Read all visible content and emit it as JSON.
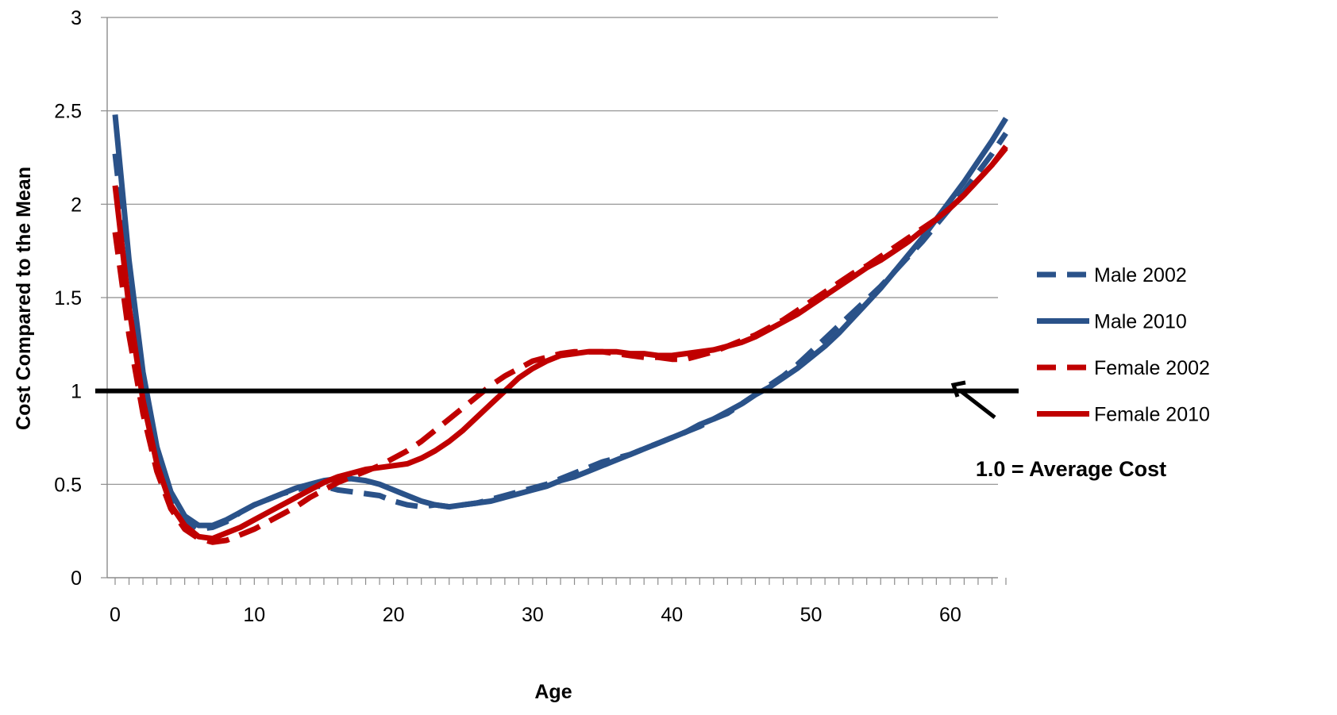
{
  "chart_data": {
    "type": "line",
    "title": "",
    "xlabel": "Age",
    "ylabel": "Cost Compared to the Mean",
    "xlim": [
      0,
      64
    ],
    "ylim": [
      0,
      3
    ],
    "xticks": [
      0,
      10,
      20,
      30,
      40,
      50,
      60
    ],
    "xtick_labels": [
      "0",
      "10",
      "20",
      "30",
      "40",
      "50",
      "60"
    ],
    "yticks": [
      0,
      0.5,
      1,
      1.5,
      2,
      2.5,
      3
    ],
    "ytick_labels": [
      "0",
      "0.5",
      "1",
      "1.5",
      "2",
      "2.5",
      "3"
    ],
    "grid": "horizontal",
    "legend_position": "right",
    "reference_line": {
      "y": 1.0,
      "color": "#000000"
    },
    "annotation": {
      "text": "1.0 = Average Cost",
      "points_to": [
        60,
        1.0
      ]
    },
    "series": [
      {
        "name": "Male 2002",
        "style": "dashed",
        "color": "#2a5289",
        "x": [
          0,
          1,
          2,
          3,
          4,
          5,
          6,
          7,
          8,
          9,
          10,
          11,
          12,
          13,
          14,
          15,
          16,
          17,
          18,
          19,
          20,
          21,
          22,
          23,
          24,
          25,
          26,
          27,
          28,
          29,
          30,
          31,
          32,
          33,
          34,
          35,
          36,
          37,
          38,
          39,
          40,
          41,
          42,
          43,
          44,
          45,
          46,
          47,
          48,
          49,
          50,
          51,
          52,
          53,
          54,
          55,
          56,
          57,
          58,
          59,
          60,
          61,
          62,
          63,
          64
        ],
        "y": [
          2.27,
          1.6,
          1.05,
          0.68,
          0.44,
          0.31,
          0.26,
          0.27,
          0.3,
          0.35,
          0.39,
          0.42,
          0.45,
          0.47,
          0.49,
          0.49,
          0.47,
          0.46,
          0.45,
          0.44,
          0.41,
          0.39,
          0.38,
          0.39,
          0.38,
          0.39,
          0.4,
          0.42,
          0.44,
          0.46,
          0.48,
          0.5,
          0.53,
          0.56,
          0.59,
          0.62,
          0.64,
          0.66,
          0.69,
          0.72,
          0.75,
          0.78,
          0.81,
          0.85,
          0.88,
          0.93,
          0.98,
          1.03,
          1.08,
          1.14,
          1.21,
          1.28,
          1.35,
          1.42,
          1.49,
          1.56,
          1.64,
          1.72,
          1.8,
          1.89,
          1.98,
          2.07,
          2.17,
          2.27,
          2.38
        ]
      },
      {
        "name": "Male 2010",
        "style": "solid",
        "color": "#2a5289",
        "x": [
          0,
          1,
          2,
          3,
          4,
          5,
          6,
          7,
          8,
          9,
          10,
          11,
          12,
          13,
          14,
          15,
          16,
          17,
          18,
          19,
          20,
          21,
          22,
          23,
          24,
          25,
          26,
          27,
          28,
          29,
          30,
          31,
          32,
          33,
          34,
          35,
          36,
          37,
          38,
          39,
          40,
          41,
          42,
          43,
          44,
          45,
          46,
          47,
          48,
          49,
          50,
          51,
          52,
          53,
          54,
          55,
          56,
          57,
          58,
          59,
          60,
          61,
          62,
          63,
          64
        ],
        "y": [
          2.48,
          1.7,
          1.1,
          0.7,
          0.46,
          0.33,
          0.28,
          0.28,
          0.31,
          0.35,
          0.39,
          0.42,
          0.45,
          0.48,
          0.5,
          0.52,
          0.53,
          0.53,
          0.52,
          0.5,
          0.47,
          0.44,
          0.41,
          0.39,
          0.38,
          0.39,
          0.4,
          0.41,
          0.43,
          0.45,
          0.47,
          0.49,
          0.52,
          0.54,
          0.57,
          0.6,
          0.63,
          0.66,
          0.69,
          0.72,
          0.75,
          0.78,
          0.82,
          0.85,
          0.89,
          0.93,
          0.98,
          1.02,
          1.07,
          1.12,
          1.18,
          1.24,
          1.31,
          1.39,
          1.47,
          1.55,
          1.64,
          1.73,
          1.82,
          1.92,
          2.02,
          2.12,
          2.23,
          2.34,
          2.46
        ]
      },
      {
        "name": "Female 2002",
        "style": "dashed",
        "color": "#c00000",
        "x": [
          0,
          1,
          2,
          3,
          4,
          5,
          6,
          7,
          8,
          9,
          10,
          11,
          12,
          13,
          14,
          15,
          16,
          17,
          18,
          19,
          20,
          21,
          22,
          23,
          24,
          25,
          26,
          27,
          28,
          29,
          30,
          31,
          32,
          33,
          34,
          35,
          36,
          37,
          38,
          39,
          40,
          41,
          42,
          43,
          44,
          45,
          46,
          47,
          48,
          49,
          50,
          51,
          52,
          53,
          54,
          55,
          56,
          57,
          58,
          59,
          60,
          61,
          62,
          63,
          64
        ],
        "y": [
          1.85,
          1.3,
          0.88,
          0.57,
          0.37,
          0.26,
          0.21,
          0.19,
          0.2,
          0.23,
          0.26,
          0.3,
          0.34,
          0.38,
          0.43,
          0.47,
          0.51,
          0.54,
          0.57,
          0.6,
          0.64,
          0.68,
          0.73,
          0.79,
          0.85,
          0.91,
          0.97,
          1.03,
          1.08,
          1.12,
          1.16,
          1.18,
          1.2,
          1.21,
          1.21,
          1.21,
          1.2,
          1.19,
          1.18,
          1.18,
          1.17,
          1.17,
          1.19,
          1.21,
          1.24,
          1.27,
          1.3,
          1.34,
          1.38,
          1.43,
          1.48,
          1.53,
          1.58,
          1.63,
          1.67,
          1.72,
          1.77,
          1.82,
          1.87,
          1.92,
          1.98,
          2.05,
          2.13,
          2.21,
          2.3
        ]
      },
      {
        "name": "Female 2010",
        "style": "solid",
        "color": "#c00000",
        "x": [
          0,
          1,
          2,
          3,
          4,
          5,
          6,
          7,
          8,
          9,
          10,
          11,
          12,
          13,
          14,
          15,
          16,
          17,
          18,
          19,
          20,
          21,
          22,
          23,
          24,
          25,
          26,
          27,
          28,
          29,
          30,
          31,
          32,
          33,
          34,
          35,
          36,
          37,
          38,
          39,
          40,
          41,
          42,
          43,
          44,
          45,
          46,
          47,
          48,
          49,
          50,
          51,
          52,
          53,
          54,
          55,
          56,
          57,
          58,
          59,
          60,
          61,
          62,
          63,
          64
        ],
        "y": [
          2.1,
          1.45,
          0.95,
          0.61,
          0.39,
          0.28,
          0.22,
          0.21,
          0.24,
          0.27,
          0.31,
          0.35,
          0.39,
          0.43,
          0.47,
          0.51,
          0.54,
          0.56,
          0.58,
          0.59,
          0.6,
          0.61,
          0.64,
          0.68,
          0.73,
          0.79,
          0.86,
          0.93,
          1.0,
          1.07,
          1.12,
          1.16,
          1.19,
          1.2,
          1.21,
          1.21,
          1.21,
          1.2,
          1.2,
          1.19,
          1.19,
          1.2,
          1.21,
          1.22,
          1.24,
          1.26,
          1.29,
          1.33,
          1.37,
          1.41,
          1.46,
          1.51,
          1.56,
          1.61,
          1.66,
          1.7,
          1.75,
          1.8,
          1.86,
          1.92,
          1.98,
          2.05,
          2.13,
          2.21,
          2.31
        ]
      }
    ]
  }
}
